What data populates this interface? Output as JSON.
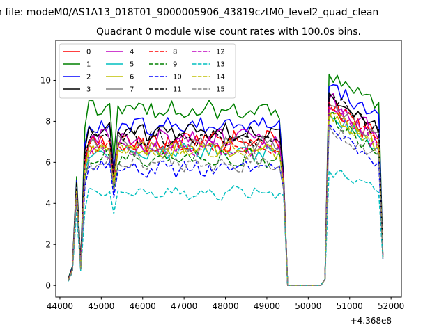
{
  "figure": {
    "suptitle": "n file: modeM0/AS1A13_018T01_9000005906_43819cztM0_level2_quad_clean"
  },
  "chart_data": {
    "type": "line",
    "title": "Quadrant 0 module wise count rates with 100.0s bins.",
    "xlabel": "",
    "ylabel": "",
    "x_offset_label": "+4.368e8",
    "xlim": [
      43900,
      52250
    ],
    "ylim": [
      -0.57,
      11.95
    ],
    "x_ticks": [
      44000,
      45000,
      46000,
      47000,
      48000,
      49000,
      50000,
      51000,
      52000
    ],
    "y_ticks": [
      0,
      2,
      4,
      6,
      8,
      10
    ],
    "x_tick_labels": [
      "44000",
      "45000",
      "46000",
      "47000",
      "48000",
      "49000",
      "50000",
      "51000",
      "52000"
    ],
    "y_tick_labels": [
      "0",
      "2",
      "4",
      "6",
      "8",
      "10"
    ],
    "grid": false,
    "legend_position": "top-left",
    "legend_columns": 4,
    "x": {
      "seg1": [
        44203,
        44303,
        44403,
        44503,
        44603,
        44703,
        44803,
        44903,
        45003,
        45103,
        45203,
        45303,
        45403,
        45503,
        45603,
        45703,
        45803,
        45903,
        46003,
        46103,
        46203,
        46303,
        46403,
        46503,
        46603,
        46703,
        46803,
        46903,
        47003,
        47103,
        47203,
        47303,
        47403,
        47503,
        47603,
        47703,
        47803,
        47903,
        48003,
        48103,
        48203,
        48303,
        48403,
        48503,
        48603,
        48703,
        48803,
        48903,
        49003,
        49103,
        49203,
        49303
      ],
      "edge1": [
        49403
      ],
      "gap": [
        49503,
        49603,
        49703,
        49803,
        49903,
        50003,
        50103,
        50203,
        50303
      ],
      "seg2": [
        50403,
        50503,
        50603,
        50703,
        50803,
        50903,
        51003,
        51103,
        51203,
        51303,
        51403,
        51503,
        51603,
        51703
      ],
      "edge2": [
        51803
      ]
    },
    "series": [
      {
        "name": "0",
        "color": "#ff0000",
        "dash": "solid",
        "base": 7.0,
        "amp": 0.45,
        "peak": 5.0,
        "dip": 5.5,
        "c2": 8.6,
        "e1": 5.1,
        "e2": 1.5,
        "ramp": [
          0.3,
          0.8,
          4.8,
          1.0
        ]
      },
      {
        "name": "1",
        "color": "#008000",
        "dash": "solid",
        "base": 8.6,
        "amp": 0.4,
        "peak": 5.3,
        "dip": 6.2,
        "c2": 10.3,
        "e1": 5.5,
        "e2": 1.6,
        "ramp": [
          0.35,
          0.95,
          5.3,
          1.1
        ]
      },
      {
        "name": "2",
        "color": "#0000ff",
        "dash": "solid",
        "base": 7.8,
        "amp": 0.4,
        "peak": 5.1,
        "dip": 5.6,
        "c2": 9.7,
        "e1": 5.4,
        "e2": 1.5,
        "ramp": [
          0.3,
          0.9,
          5.1,
          1.0
        ]
      },
      {
        "name": "3",
        "color": "#000000",
        "dash": "solid",
        "base": 7.5,
        "amp": 0.35,
        "peak": 5.0,
        "dip": 5.3,
        "c2": 9.4,
        "e1": 5.3,
        "e2": 1.5,
        "ramp": [
          0.3,
          0.85,
          5.0,
          1.0
        ]
      },
      {
        "name": "4",
        "color": "#bf00bf",
        "dash": "solid",
        "base": 7.1,
        "amp": 0.45,
        "peak": 4.8,
        "dip": 5.3,
        "c2": 9.1,
        "e1": 5.2,
        "e2": 1.5,
        "ramp": [
          0.28,
          0.8,
          4.8,
          0.9
        ]
      },
      {
        "name": "5",
        "color": "#00bfbf",
        "dash": "solid",
        "base": 6.5,
        "amp": 0.3,
        "peak": 4.5,
        "dip": 4.8,
        "c2": 8.3,
        "e1": 4.9,
        "e2": 1.4,
        "ramp": [
          0.25,
          0.75,
          4.5,
          0.8
        ]
      },
      {
        "name": "6",
        "color": "#bfbf00",
        "dash": "solid",
        "base": 6.6,
        "amp": 0.35,
        "peak": 4.6,
        "dip": 4.9,
        "c2": 8.5,
        "e1": 5.0,
        "e2": 1.4,
        "ramp": [
          0.25,
          0.75,
          4.6,
          0.8
        ]
      },
      {
        "name": "7",
        "color": "#808080",
        "dash": "solid",
        "base": 6.9,
        "amp": 0.35,
        "peak": 4.8,
        "dip": 5.1,
        "c2": 8.8,
        "e1": 5.0,
        "e2": 1.4,
        "ramp": [
          0.28,
          0.8,
          4.8,
          0.9
        ]
      },
      {
        "name": "8",
        "color": "#ff0000",
        "dash": "dashed",
        "base": 6.8,
        "amp": 0.35,
        "peak": 4.7,
        "dip": 5.0,
        "c2": 8.9,
        "e1": 5.0,
        "e2": 1.4,
        "ramp": [
          0.28,
          0.8,
          4.7,
          0.9
        ]
      },
      {
        "name": "9",
        "color": "#008000",
        "dash": "dashed",
        "base": 6.2,
        "amp": 0.35,
        "peak": 4.4,
        "dip": 4.7,
        "c2": 8.4,
        "e1": 4.8,
        "e2": 1.4,
        "ramp": [
          0.25,
          0.75,
          4.4,
          0.8
        ]
      },
      {
        "name": "10",
        "color": "#0000ff",
        "dash": "dashed",
        "base": 5.7,
        "amp": 0.3,
        "peak": 4.2,
        "dip": 4.3,
        "c2": 7.9,
        "e1": 4.7,
        "e2": 1.3,
        "ramp": [
          0.22,
          0.7,
          4.2,
          0.8
        ]
      },
      {
        "name": "11",
        "color": "#000000",
        "dash": "dashed",
        "base": 7.2,
        "amp": 0.35,
        "peak": 4.9,
        "dip": 5.2,
        "c2": 9.2,
        "e1": 5.1,
        "e2": 1.5,
        "ramp": [
          0.28,
          0.8,
          4.9,
          0.9
        ]
      },
      {
        "name": "12",
        "color": "#bf00bf",
        "dash": "dashed",
        "base": 6.7,
        "amp": 0.4,
        "peak": 4.6,
        "dip": 5.0,
        "c2": 8.7,
        "e1": 5.0,
        "e2": 1.4,
        "ramp": [
          0.27,
          0.78,
          4.6,
          0.9
        ]
      },
      {
        "name": "13",
        "color": "#00bfbf",
        "dash": "dashed",
        "base": 4.55,
        "amp": 0.25,
        "peak": 3.6,
        "dip": 3.5,
        "c2": 5.6,
        "e1": 4.4,
        "e2": 1.3,
        "ramp": [
          0.2,
          0.65,
          3.6,
          0.7
        ]
      },
      {
        "name": "14",
        "color": "#bfbf00",
        "dash": "dashed",
        "base": 6.6,
        "amp": 0.35,
        "peak": 4.6,
        "dip": 4.9,
        "c2": 8.4,
        "e1": 4.9,
        "e2": 1.4,
        "ramp": [
          0.25,
          0.75,
          4.6,
          0.8
        ]
      },
      {
        "name": "15",
        "color": "#808080",
        "dash": "dashed",
        "base": 6.0,
        "amp": 0.35,
        "peak": 4.3,
        "dip": 4.6,
        "c2": 7.8,
        "e1": 4.7,
        "e2": 1.3,
        "ramp": [
          0.22,
          0.7,
          4.3,
          0.8
        ]
      }
    ]
  }
}
